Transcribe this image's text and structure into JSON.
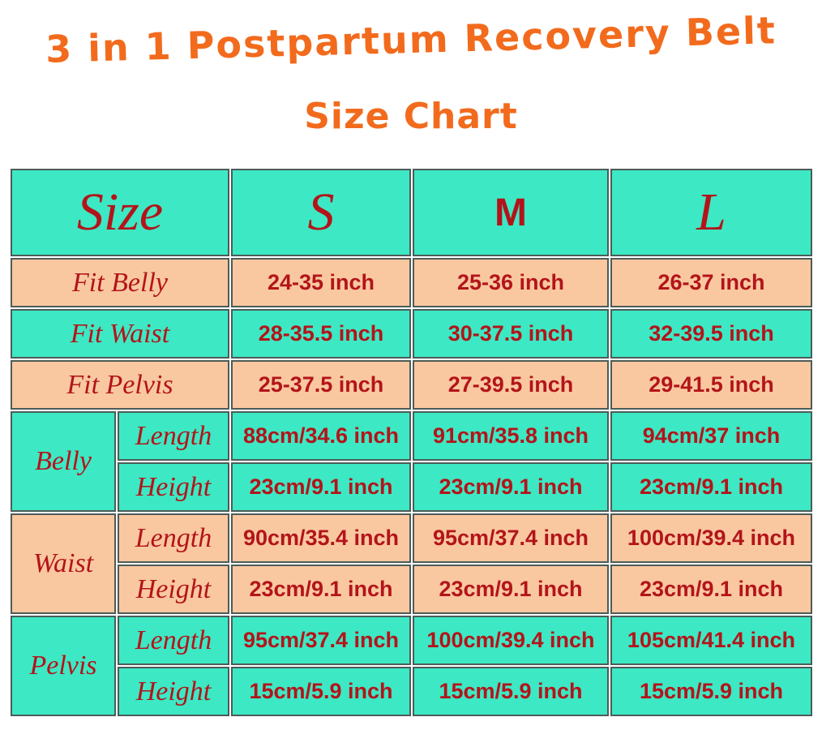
{
  "header": {
    "title": "3 in 1 Postpartum Recovery Belt",
    "subtitle": "Size Chart"
  },
  "table": {
    "columns": [
      "Size",
      "S",
      "M",
      "L"
    ],
    "rows": [
      {
        "label": "Fit Belly",
        "values": [
          "24-35 inch",
          "25-36 inch",
          "26-37 inch"
        ]
      },
      {
        "label": "Fit Waist",
        "values": [
          "28-35.5 inch",
          "30-37.5 inch",
          "32-39.5 inch"
        ]
      },
      {
        "label": "Fit Pelvis",
        "values": [
          "25-37.5 inch",
          "27-39.5 inch",
          "29-41.5 inch"
        ]
      }
    ],
    "groups": [
      {
        "label": "Belly",
        "rows": [
          {
            "label": "Length",
            "values": [
              "88cm/34.6 inch",
              "91cm/35.8 inch",
              "94cm/37 inch"
            ]
          },
          {
            "label": "Height",
            "values": [
              "23cm/9.1 inch",
              "23cm/9.1 inch",
              "23cm/9.1 inch"
            ]
          }
        ]
      },
      {
        "label": "Waist",
        "rows": [
          {
            "label": "Length",
            "values": [
              "90cm/35.4 inch",
              "95cm/37.4 inch",
              "100cm/39.4 inch"
            ]
          },
          {
            "label": "Height",
            "values": [
              "23cm/9.1 inch",
              "23cm/9.1 inch",
              "23cm/9.1 inch"
            ]
          }
        ]
      },
      {
        "label": "Pelvis",
        "rows": [
          {
            "label": "Length",
            "values": [
              "95cm/37.4 inch",
              "100cm/39.4 inch",
              "105cm/41.4 inch"
            ]
          },
          {
            "label": "Height",
            "values": [
              "15cm/5.9 inch",
              "15cm/5.9 inch",
              "15cm/5.9 inch"
            ]
          }
        ]
      }
    ]
  }
}
